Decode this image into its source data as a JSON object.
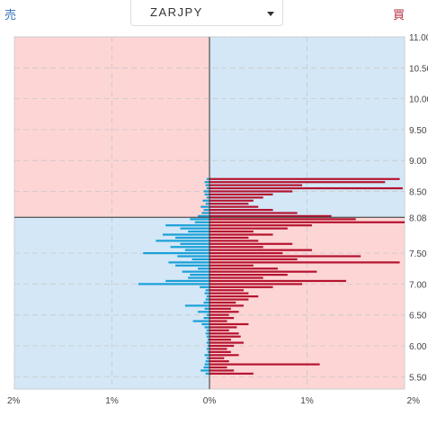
{
  "header": {
    "sell_label": "売",
    "buy_label": "買",
    "symbol": "ZARJPY"
  },
  "icons": {
    "dropdown": "chevron-down-icon"
  },
  "colors": {
    "sell_bar": "#1aa0d8",
    "buy_bar": "#b5132f",
    "pink_bg": "#fdd5d5",
    "blue_bg": "#d3e7f6"
  },
  "chart_data": {
    "type": "bar",
    "orientation": "horizontal",
    "title": "",
    "current_price": 8.08,
    "xlim": [
      -2,
      2
    ],
    "ylim": [
      5.3,
      11.0
    ],
    "x_ticks": [
      "2%",
      "1%",
      "0%",
      "1%",
      "2%"
    ],
    "y_ticks": [
      "11.00",
      "10.50",
      "10.00",
      "9.50",
      "9.00",
      "8.50",
      "8.08",
      "7.50",
      "7.00",
      "6.50",
      "6.00",
      "5.50"
    ],
    "grid": true,
    "series": [
      {
        "name": "売",
        "side": "left",
        "values": [
          [
            5.55,
            0.04
          ],
          [
            5.6,
            0.09
          ],
          [
            5.65,
            0.06
          ],
          [
            5.7,
            0.05
          ],
          [
            5.75,
            0.04
          ],
          [
            5.8,
            0.03
          ],
          [
            5.85,
            0.05
          ],
          [
            5.9,
            0.02
          ],
          [
            5.95,
            0.03
          ],
          [
            6.0,
            0.02
          ],
          [
            6.05,
            0.03
          ],
          [
            6.1,
            0.02
          ],
          [
            6.15,
            0.03
          ],
          [
            6.2,
            0.04
          ],
          [
            6.25,
            0.03
          ],
          [
            6.3,
            0.05
          ],
          [
            6.35,
            0.08
          ],
          [
            6.4,
            0.17
          ],
          [
            6.45,
            0.06
          ],
          [
            6.5,
            0.03
          ],
          [
            6.55,
            0.12
          ],
          [
            6.6,
            0.05
          ],
          [
            6.65,
            0.25
          ],
          [
            6.7,
            0.06
          ],
          [
            6.75,
            0.04
          ],
          [
            6.8,
            0.03
          ],
          [
            6.85,
            0.05
          ],
          [
            6.9,
            0.04
          ],
          [
            6.95,
            0.1
          ],
          [
            7.0,
            0.73
          ],
          [
            7.05,
            0.45
          ],
          [
            7.1,
            0.22
          ],
          [
            7.15,
            0.2
          ],
          [
            7.2,
            0.28
          ],
          [
            7.25,
            0.12
          ],
          [
            7.3,
            0.35
          ],
          [
            7.35,
            0.42
          ],
          [
            7.4,
            0.18
          ],
          [
            7.45,
            0.33
          ],
          [
            7.5,
            0.68
          ],
          [
            7.55,
            0.25
          ],
          [
            7.6,
            0.4
          ],
          [
            7.65,
            0.3
          ],
          [
            7.7,
            0.55
          ],
          [
            7.75,
            0.35
          ],
          [
            7.8,
            0.48
          ],
          [
            7.85,
            0.22
          ],
          [
            7.9,
            0.3
          ],
          [
            7.95,
            0.45
          ],
          [
            8.0,
            0.15
          ],
          [
            8.05,
            0.2
          ],
          [
            8.1,
            0.12
          ],
          [
            8.15,
            0.08
          ],
          [
            8.2,
            0.06
          ],
          [
            8.25,
            0.09
          ],
          [
            8.3,
            0.04
          ],
          [
            8.35,
            0.07
          ],
          [
            8.4,
            0.03
          ],
          [
            8.45,
            0.05
          ],
          [
            8.5,
            0.06
          ],
          [
            8.55,
            0.03
          ],
          [
            8.6,
            0.04
          ],
          [
            8.65,
            0.05
          ],
          [
            8.7,
            0.03
          ]
        ]
      },
      {
        "name": "買",
        "side": "right",
        "values": [
          [
            5.55,
            0.45
          ],
          [
            5.6,
            0.25
          ],
          [
            5.65,
            0.18
          ],
          [
            5.7,
            1.13
          ],
          [
            5.75,
            0.2
          ],
          [
            5.8,
            0.15
          ],
          [
            5.85,
            0.3
          ],
          [
            5.9,
            0.22
          ],
          [
            5.95,
            0.18
          ],
          [
            6.0,
            0.25
          ],
          [
            6.05,
            0.35
          ],
          [
            6.1,
            0.22
          ],
          [
            6.15,
            0.32
          ],
          [
            6.2,
            0.3
          ],
          [
            6.25,
            0.2
          ],
          [
            6.3,
            0.28
          ],
          [
            6.35,
            0.4
          ],
          [
            6.4,
            0.18
          ],
          [
            6.45,
            0.25
          ],
          [
            6.5,
            0.2
          ],
          [
            6.55,
            0.3
          ],
          [
            6.6,
            0.22
          ],
          [
            6.65,
            0.35
          ],
          [
            6.7,
            0.27
          ],
          [
            6.75,
            0.4
          ],
          [
            6.8,
            0.5
          ],
          [
            6.85,
            0.4
          ],
          [
            6.9,
            0.35
          ],
          [
            6.95,
            0.65
          ],
          [
            7.0,
            0.95
          ],
          [
            7.05,
            1.4
          ],
          [
            7.1,
            0.55
          ],
          [
            7.15,
            0.8
          ],
          [
            7.2,
            1.1
          ],
          [
            7.25,
            0.7
          ],
          [
            7.3,
            0.45
          ],
          [
            7.35,
            1.95
          ],
          [
            7.4,
            0.9
          ],
          [
            7.45,
            1.55
          ],
          [
            7.5,
            0.75
          ],
          [
            7.55,
            1.05
          ],
          [
            7.6,
            0.55
          ],
          [
            7.65,
            0.85
          ],
          [
            7.7,
            0.5
          ],
          [
            7.75,
            0.4
          ],
          [
            7.8,
            0.65
          ],
          [
            7.85,
            0.45
          ],
          [
            7.9,
            0.8
          ],
          [
            7.95,
            1.05
          ],
          [
            8.0,
            2.0
          ],
          [
            8.05,
            1.5
          ],
          [
            8.1,
            1.25
          ],
          [
            8.15,
            0.9
          ],
          [
            8.2,
            0.65
          ],
          [
            8.25,
            0.5
          ],
          [
            8.3,
            0.4
          ],
          [
            8.35,
            0.45
          ],
          [
            8.4,
            0.55
          ],
          [
            8.45,
            0.65
          ],
          [
            8.5,
            0.85
          ],
          [
            8.55,
            1.98
          ],
          [
            8.6,
            0.95
          ],
          [
            8.65,
            1.8
          ],
          [
            8.7,
            1.95
          ]
        ]
      }
    ]
  }
}
